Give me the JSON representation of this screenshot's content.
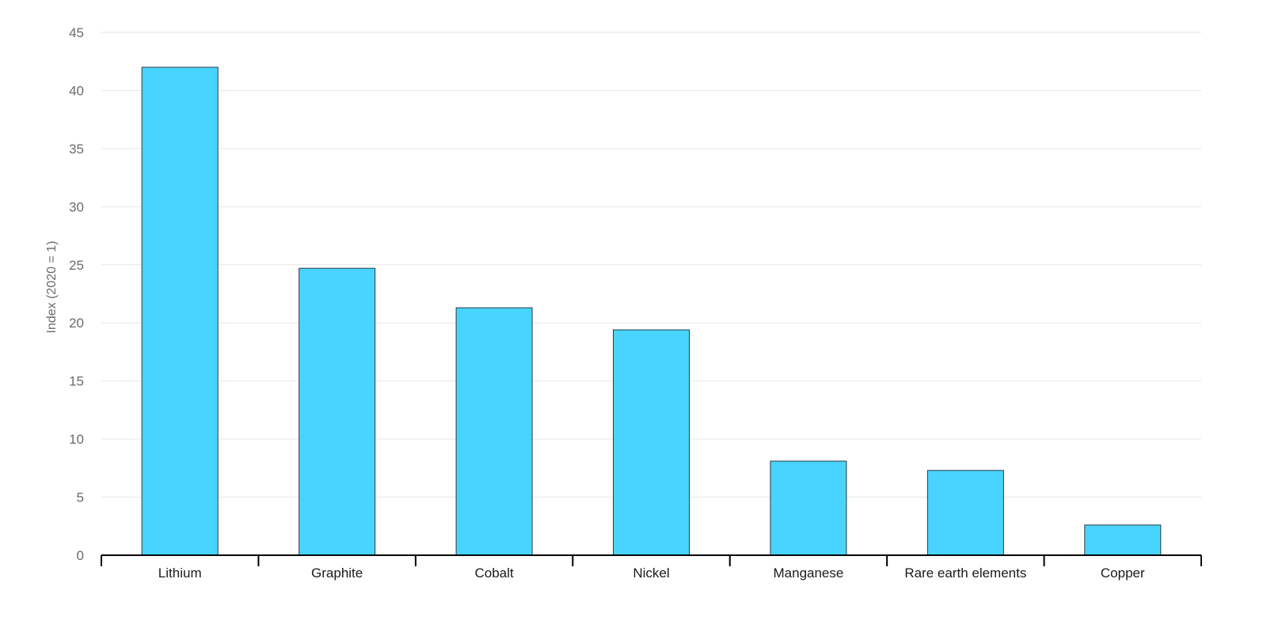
{
  "chart_data": {
    "type": "bar",
    "title": "",
    "xlabel": "",
    "ylabel": "Index (2020 = 1)",
    "ylim": [
      0,
      45
    ],
    "yticks": [
      0,
      5,
      10,
      15,
      20,
      25,
      30,
      35,
      40,
      45
    ],
    "grid": true,
    "legend": "none",
    "categories": [
      "Lithium",
      "Graphite",
      "Cobalt",
      "Nickel",
      "Manganese",
      "Rare earth elements",
      "Copper"
    ],
    "values": [
      42,
      24.7,
      21.3,
      19.4,
      8.1,
      7.3,
      2.6
    ],
    "colors": {
      "bar_fill": "#48d4ff",
      "bar_stroke": "#2a3b40",
      "grid": "#e6e6e6",
      "axis": "#000000"
    }
  }
}
